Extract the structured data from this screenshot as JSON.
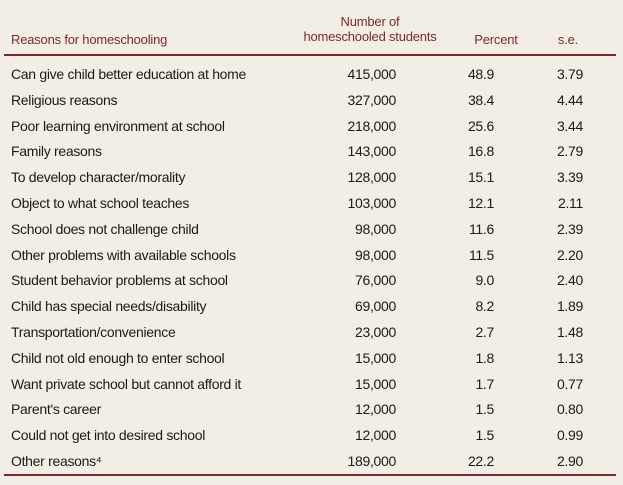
{
  "header": {
    "reason_label": "Reasons for homeschooling",
    "number_label_line1": "Number of",
    "number_label_line2": "homeschooled students",
    "percent_label": "Percent",
    "se_label": "s.e."
  },
  "rows": [
    {
      "reason": "Can give child better education at home",
      "number": "415,000",
      "percent": "48.9",
      "se": "3.79"
    },
    {
      "reason": "Religious reasons",
      "number": "327,000",
      "percent": "38.4",
      "se": "4.44"
    },
    {
      "reason": "Poor learning environment at school",
      "number": "218,000",
      "percent": "25.6",
      "se": "3.44"
    },
    {
      "reason": "Family reasons",
      "number": "143,000",
      "percent": "16.8",
      "se": "2.79"
    },
    {
      "reason": "To develop character/morality",
      "number": "128,000",
      "percent": "15.1",
      "se": "3.39"
    },
    {
      "reason": "Object to what school teaches",
      "number": "103,000",
      "percent": "12.1",
      "se": "2.11"
    },
    {
      "reason": "School does not challenge child",
      "number": "98,000",
      "percent": "11.6",
      "se": "2.39"
    },
    {
      "reason": "Other problems with available schools",
      "number": "98,000",
      "percent": "11.5",
      "se": "2.20"
    },
    {
      "reason": "Student behavior problems at school",
      "number": "76,000",
      "percent": "9.0",
      "se": "2.40"
    },
    {
      "reason": "Child has special needs/disability",
      "number": "69,000",
      "percent": "8.2",
      "se": "1.89"
    },
    {
      "reason": "Transportation/convenience",
      "number": "23,000",
      "percent": "2.7",
      "se": "1.48"
    },
    {
      "reason": "Child not old enough to enter school",
      "number": "15,000",
      "percent": "1.8",
      "se": "1.13"
    },
    {
      "reason": "Want private school but cannot afford it",
      "number": "15,000",
      "percent": "1.7",
      "se": "0.77"
    },
    {
      "reason": "Parent's career",
      "number": "12,000",
      "percent": "1.5",
      "se": "0.80"
    },
    {
      "reason": "Could not get into desired school",
      "number": "12,000",
      "percent": "1.5",
      "se": "0.99"
    },
    {
      "reason": "Other reasons⁴",
      "number": "189,000",
      "percent": "22.2",
      "se": "2.90"
    }
  ]
}
